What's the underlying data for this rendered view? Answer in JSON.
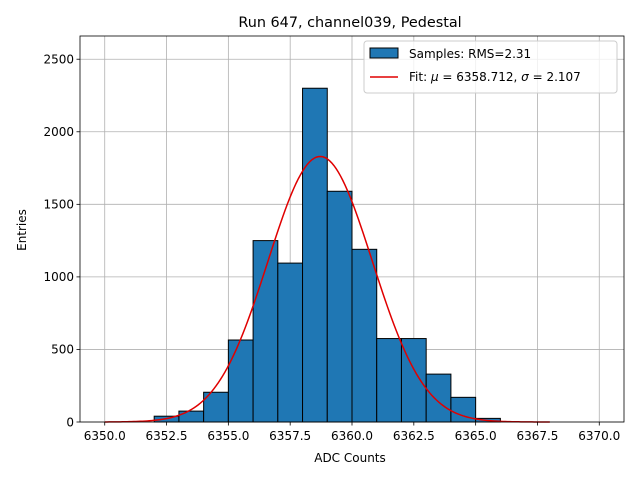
{
  "chart_data": {
    "type": "bar",
    "title": "Run 647, channel039, Pedestal",
    "xlabel": "ADC Counts",
    "ylabel": "Entries",
    "xlim": [
      6349.0,
      6371.0
    ],
    "ylim": [
      0,
      2660
    ],
    "grid": true,
    "x_ticks": [
      6350.0,
      6352.5,
      6355.0,
      6357.5,
      6360.0,
      6362.5,
      6365.0,
      6367.5,
      6370.0
    ],
    "x_tick_labels": [
      "6350.0",
      "6352.5",
      "6355.0",
      "6357.5",
      "6360.0",
      "6362.5",
      "6365.0",
      "6367.5",
      "6370.0"
    ],
    "y_ticks": [
      0,
      500,
      1000,
      1500,
      2000,
      2500
    ],
    "y_tick_labels": [
      "0",
      "500",
      "1000",
      "1500",
      "2000",
      "2500"
    ],
    "histogram": {
      "name": "Samples: RMS=2.31",
      "color": "#1f77b4",
      "edge_color": "#000000",
      "bin_edges": [
        6352.0,
        6353.0,
        6354.0,
        6355.0,
        6356.0,
        6357.0,
        6358.0,
        6359.0,
        6360.0,
        6361.0,
        6362.0,
        6363.0,
        6364.0,
        6365.0,
        6366.0
      ],
      "values": [
        40,
        75,
        205,
        565,
        1250,
        1095,
        2300,
        1590,
        1190,
        575,
        575,
        330,
        170,
        25
      ]
    },
    "fit": {
      "name": "Fit: μ = 6358.712, σ = 2.107",
      "color": "#e00000",
      "mu": 6358.712,
      "sigma": 2.107,
      "amplitude": 1830,
      "x_range": [
        6350.0,
        6368.0
      ]
    },
    "legend": {
      "placement": "top-right",
      "entries": [
        {
          "label_plain": "Samples: RMS=2.31"
        },
        {
          "label_prefix": "Fit: ",
          "mu_symbol": "μ",
          "mu_value": " = 6358.712, ",
          "sigma_symbol": "σ",
          "sigma_value": " = 2.107"
        }
      ]
    }
  }
}
